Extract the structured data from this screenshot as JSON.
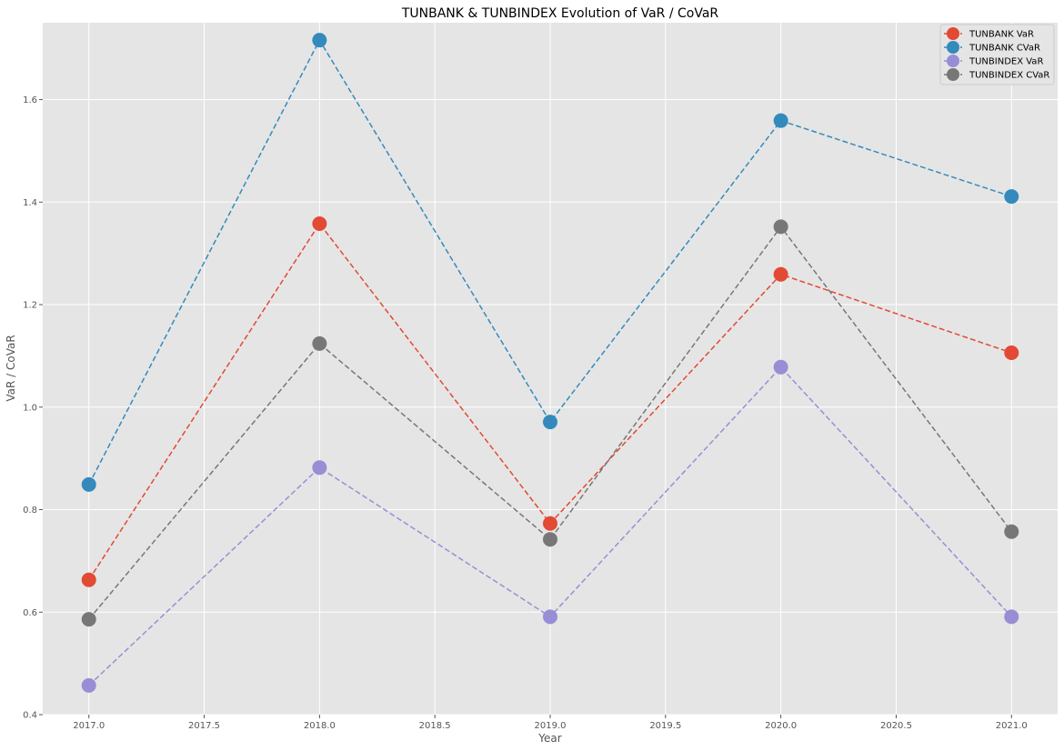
{
  "chart_data": {
    "type": "line",
    "title": "TUNBANK & TUNBINDEX Evolution of VaR / CoVaR",
    "xlabel": "Year",
    "ylabel": "VaR / CoVaR",
    "x": [
      2017,
      2018,
      2019,
      2020,
      2021
    ],
    "xlim": [
      2016.8,
      2021.2
    ],
    "ylim": [
      0.4,
      1.75
    ],
    "xticks": [
      "2017.0",
      "2017.5",
      "2018.0",
      "2018.5",
      "2019.0",
      "2019.5",
      "2020.0",
      "2020.5",
      "2021.0"
    ],
    "xtick_values": [
      2017.0,
      2017.5,
      2018.0,
      2018.5,
      2019.0,
      2019.5,
      2020.0,
      2020.5,
      2021.0
    ],
    "yticks": [
      "0.4",
      "0.6",
      "0.8",
      "1.0",
      "1.2",
      "1.4",
      "1.6"
    ],
    "ytick_values": [
      0.4,
      0.6,
      0.8,
      1.0,
      1.2,
      1.4,
      1.6
    ],
    "grid": true,
    "style": "ggplot",
    "line_style": "dashed",
    "marker": "circle",
    "legend_position": "top-right",
    "series": [
      {
        "name": "TUNBANK VaR",
        "color": "#E24A33",
        "values": [
          0.663,
          1.358,
          0.773,
          1.259,
          1.106
        ]
      },
      {
        "name": "TUNBANK CVaR",
        "color": "#348ABD",
        "values": [
          0.849,
          1.716,
          0.971,
          1.559,
          1.411
        ]
      },
      {
        "name": "TUNBINDEX VaR",
        "color": "#988ED5",
        "values": [
          0.457,
          0.882,
          0.591,
          1.078,
          0.591
        ]
      },
      {
        "name": "TUNBINDEX CVaR",
        "color": "#777777",
        "values": [
          0.586,
          1.124,
          0.742,
          1.352,
          0.757
        ]
      }
    ]
  }
}
